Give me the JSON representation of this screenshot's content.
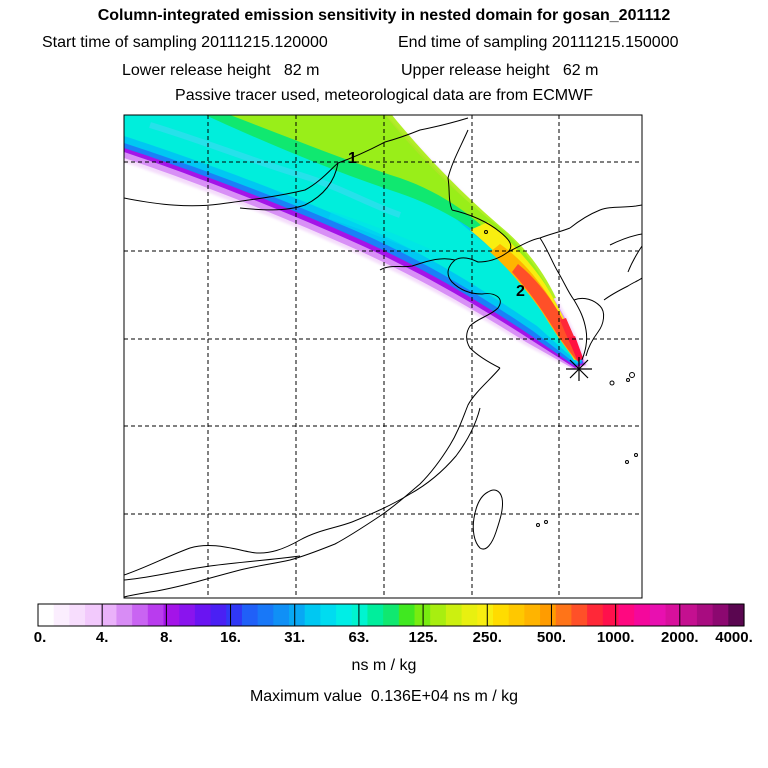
{
  "header": {
    "title": "Column-integrated emission sensitivity in nested domain for gosan_201112",
    "start_label": "Start time of sampling 20111215.120000",
    "end_label": "End time of sampling 20111215.150000",
    "lower_label": "Lower release height   82 m",
    "upper_label": "Upper release height   62 m",
    "tracer_line": "Passive tracer used, meteorological data are from ECMWF"
  },
  "map": {
    "plume_labels": [
      "2",
      "1"
    ],
    "receptor_marker": "asterisk-icon"
  },
  "colorbar": {
    "tick_labels": [
      "0.",
      "4.",
      "8.",
      "16.",
      "31.",
      "63.",
      "125.",
      "250.",
      "500.",
      "1000.",
      "2000.",
      "4000."
    ],
    "colors": [
      "#ffffff",
      "#fbeefe",
      "#f7ddfd",
      "#f2c9fc",
      "#eab2fa",
      "#d88cf5",
      "#c964f2",
      "#b93cee",
      "#a414e8",
      "#8a14ee",
      "#6a14f2",
      "#4a20f4",
      "#3038f6",
      "#2060f8",
      "#1878f8",
      "#1090f6",
      "#08a8f4",
      "#00c8f2",
      "#00dcf0",
      "#00eee6",
      "#00f4d0",
      "#00ee9c",
      "#10e870",
      "#40e820",
      "#78ec10",
      "#a8ee10",
      "#ccf010",
      "#e8f010",
      "#f8ee10",
      "#ffdc00",
      "#ffc800",
      "#ffb400",
      "#ff9c00",
      "#ff7418",
      "#ff5028",
      "#ff2838",
      "#ff104c",
      "#ff0880",
      "#f4089c",
      "#e810b0",
      "#d8109c",
      "#c41090",
      "#a80c80",
      "#8c0870",
      "#5a0650"
    ],
    "units": "ns m / kg",
    "max_value_text": "Maximum value  0.136E+04 ns m / kg"
  }
}
